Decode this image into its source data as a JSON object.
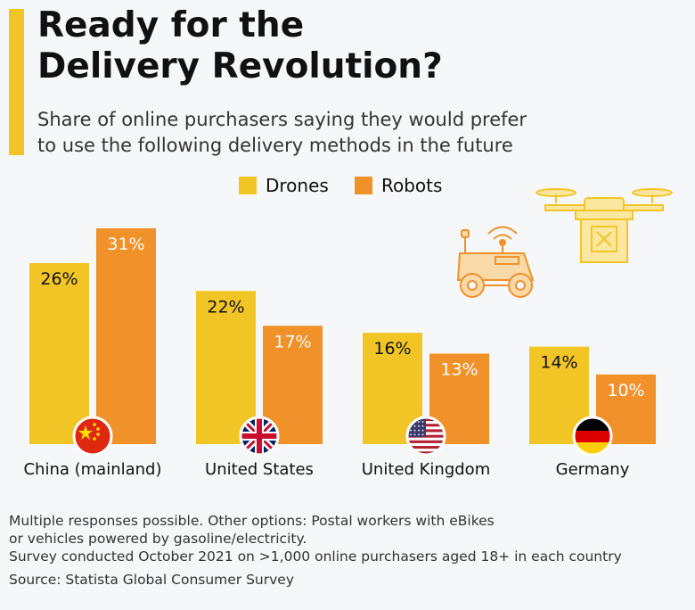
{
  "header": {
    "title_line1": "Ready for the",
    "title_line2": "Delivery Revolution?",
    "subtitle_line1": "Share of online purchasers saying they would prefer",
    "subtitle_line2": "to use the following delivery methods in the future"
  },
  "colors": {
    "drones": "#f2c527",
    "robots": "#f0912a",
    "accent": "#f2c527",
    "background": "#f6f7f9"
  },
  "chart_data": {
    "type": "bar",
    "categories": [
      "China (mainland)",
      "United States",
      "United Kingdom",
      "Germany"
    ],
    "series": [
      {
        "name": "Drones",
        "values": [
          26,
          22,
          16,
          14
        ],
        "labels": [
          "26%",
          "22%",
          "16%",
          "14%"
        ]
      },
      {
        "name": "Robots",
        "values": [
          31,
          17,
          13,
          10
        ],
        "labels": [
          "31%",
          "17%",
          "13%",
          "10%"
        ]
      }
    ],
    "unit": "%",
    "ylim": [
      0,
      31
    ],
    "grid": false,
    "legend_position": "top-center",
    "flags": [
      "china-flag-icon",
      "uk-flag-icon",
      "us-flag-icon",
      "germany-flag-icon"
    ]
  },
  "footer": {
    "note_line1": "Multiple responses possible. Other options: Postal workers with eBikes",
    "note_line2": "or vehicles powered by gasoline/electricity.",
    "note_line3": "Survey conducted October 2021 on >1,000 online purchasers aged 18+ in each country",
    "source": "Source: Statista Global Consumer Survey"
  }
}
